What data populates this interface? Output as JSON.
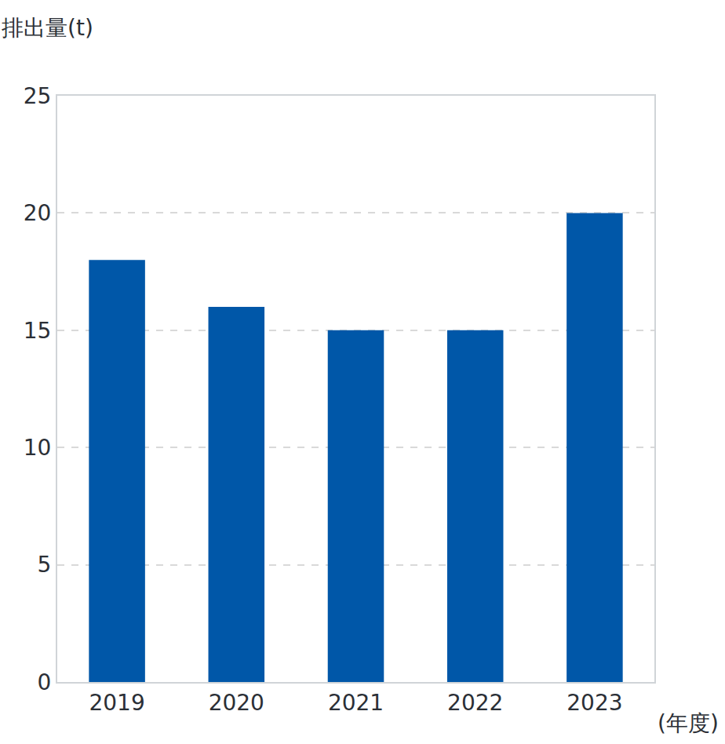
{
  "chart_data": {
    "type": "bar",
    "y_label": "排出量(t)",
    "x_label": "(年度)",
    "categories": [
      "2019",
      "2020",
      "2021",
      "2022",
      "2023"
    ],
    "values": [
      18,
      16,
      15,
      15,
      20
    ],
    "color": "#0057a8",
    "ylim": [
      0,
      25
    ],
    "yticks": [
      0,
      5,
      10,
      15,
      20,
      25
    ],
    "grid": true
  }
}
